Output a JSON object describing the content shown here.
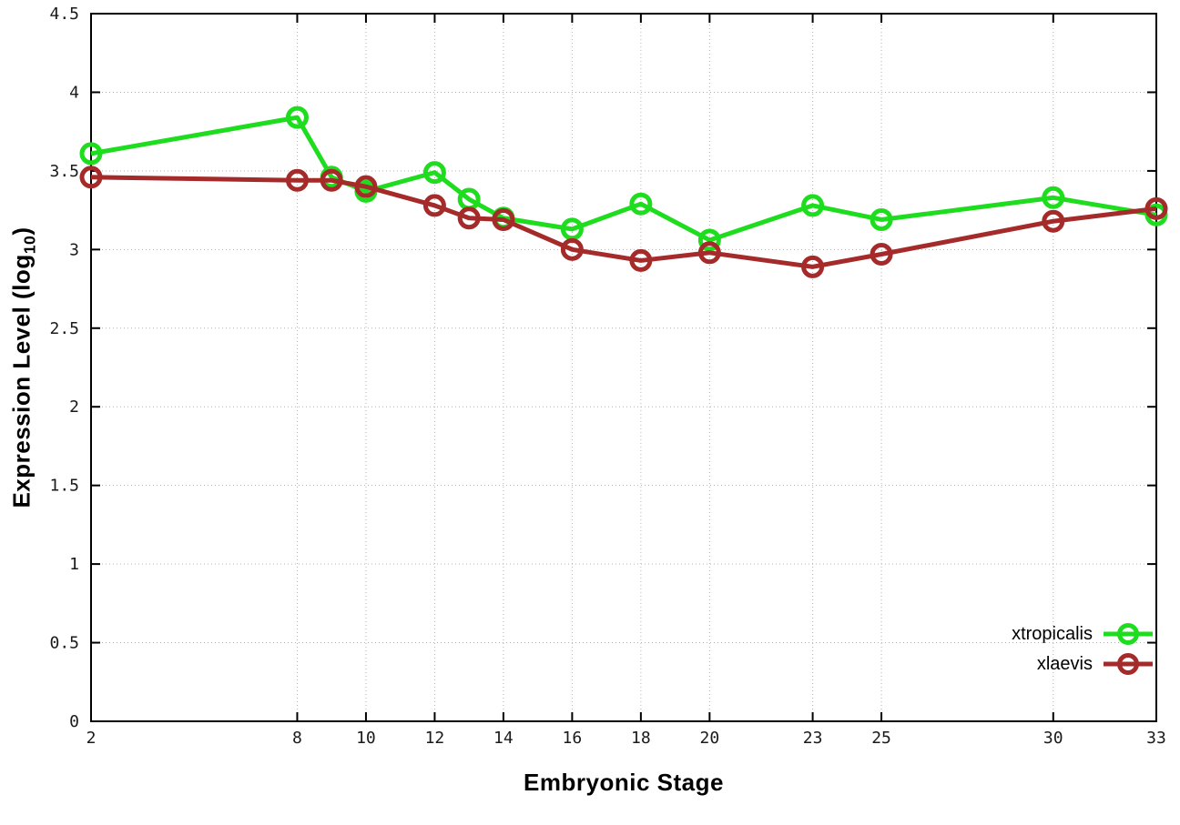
{
  "figure": {
    "background": "#ffffff",
    "border_color": "#000000",
    "grid_color": "#b4b4b4",
    "tick_label_color": "#1a1a1a"
  },
  "chart_data": {
    "type": "line",
    "title": "",
    "xlabel": "Embryonic Stage",
    "ylabel": "Expression Level (log10)",
    "ylabel_parts": {
      "main": "Expression Level (log",
      "sub": "10",
      "end": ")"
    },
    "xlim": [
      2,
      33
    ],
    "ylim": [
      0,
      4.5
    ],
    "x_ticks": [
      2,
      8,
      10,
      12,
      14,
      16,
      18,
      20,
      23,
      25,
      30,
      33
    ],
    "y_ticks": [
      0,
      0.5,
      1,
      1.5,
      2,
      2.5,
      3,
      3.5,
      4,
      4.5
    ],
    "grid": true,
    "legend_position": "bottom-right",
    "x": [
      2,
      8,
      9,
      10,
      12,
      13,
      14,
      16,
      18,
      20,
      23,
      25,
      30,
      33
    ],
    "series": [
      {
        "name": "xtropicalis",
        "color": "#1edc1e",
        "values": [
          3.61,
          3.84,
          3.46,
          3.37,
          3.49,
          3.32,
          3.2,
          3.13,
          3.29,
          3.06,
          3.28,
          3.19,
          3.33,
          3.22
        ]
      },
      {
        "name": "xlaevis",
        "color": "#a52a2a",
        "values": [
          3.46,
          3.44,
          3.44,
          3.4,
          3.28,
          3.2,
          3.19,
          3.0,
          2.93,
          2.98,
          2.89,
          2.97,
          3.18,
          3.26
        ]
      }
    ]
  }
}
